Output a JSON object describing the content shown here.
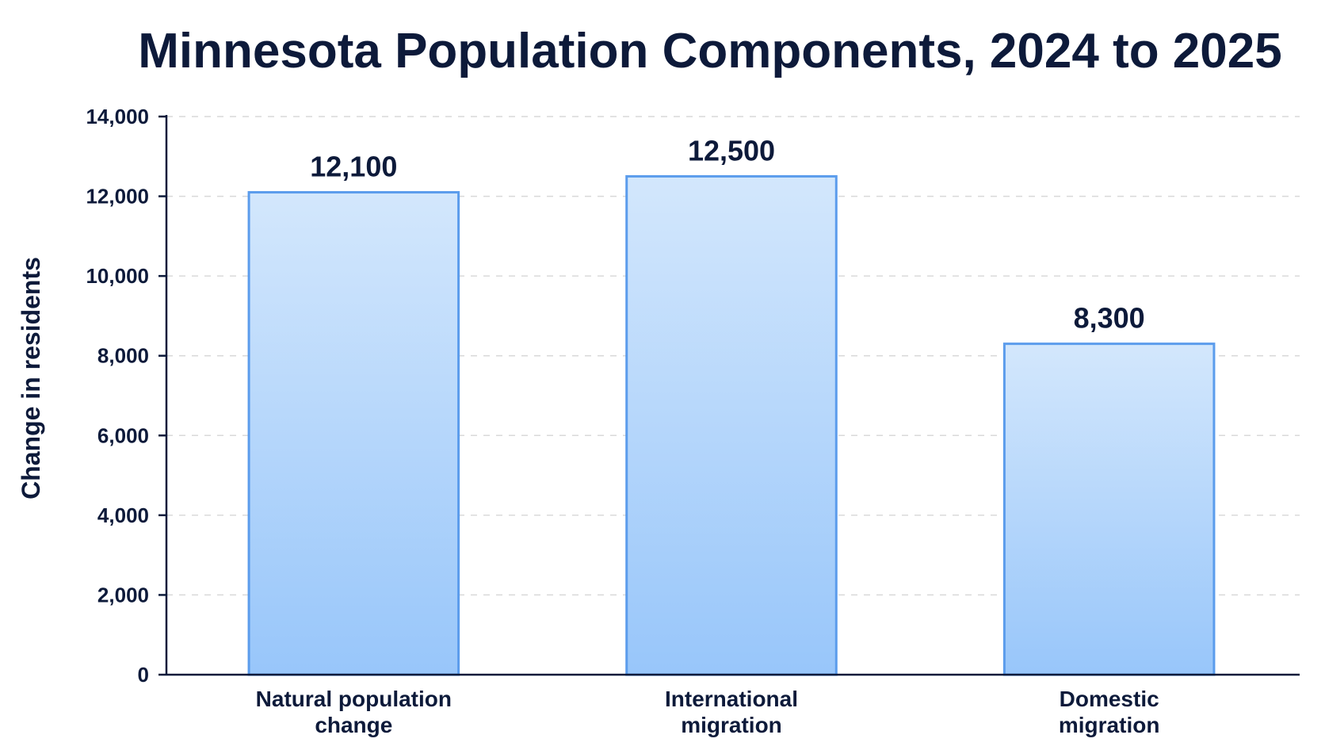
{
  "chart_data": {
    "type": "bar",
    "title": "Minnesota Population Components, 2024 to 2025",
    "xlabel": "",
    "ylabel": "Change in residents",
    "categories": [
      [
        "Natural population",
        "change"
      ],
      [
        "International",
        "migration"
      ],
      [
        "Domestic",
        "migration"
      ]
    ],
    "values": [
      12100,
      12500,
      8300
    ],
    "value_labels": [
      "12,100",
      "12,500",
      "8,300"
    ],
    "ylim": [
      0,
      14000
    ],
    "yticks": [
      0,
      2000,
      4000,
      6000,
      8000,
      10000,
      12000,
      14000
    ],
    "ytick_labels": [
      "0",
      "2,000",
      "4,000",
      "6,000",
      "8,000",
      "10,000",
      "12,000",
      "14,000"
    ],
    "grid": true,
    "legend": "none",
    "colors": {
      "bar_fill_top": "#d3e7fc",
      "bar_fill_bottom": "#98c6fa",
      "bar_stroke": "#5b9cec",
      "text": "#0d1a3a",
      "grid": "#d9d9d9"
    }
  }
}
